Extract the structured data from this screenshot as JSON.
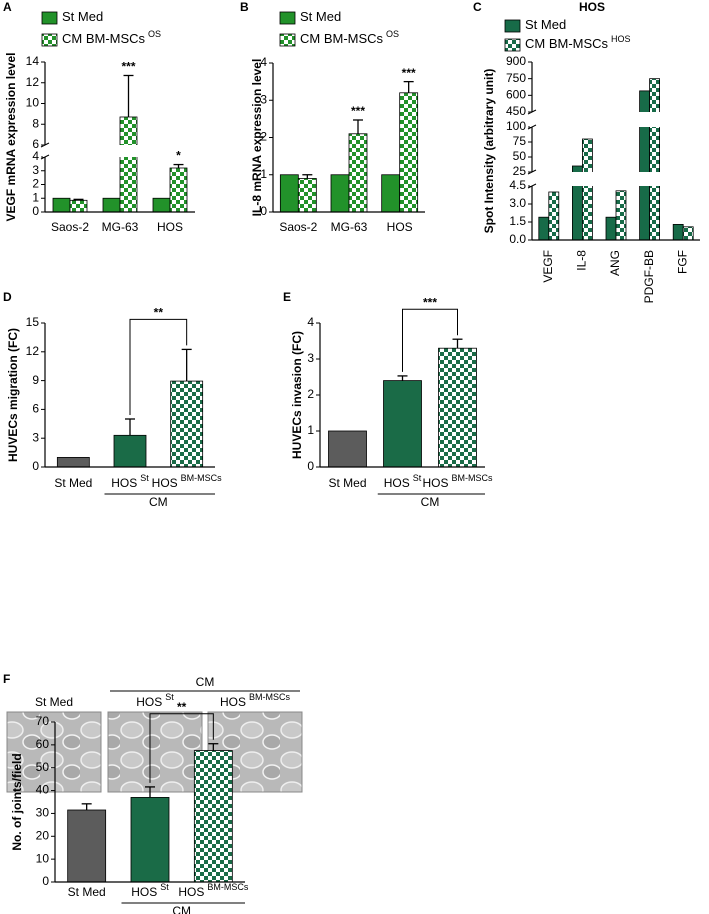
{
  "chart_data": [
    {
      "panel": "A",
      "type": "bar",
      "y_label": "VEGF mRNA expression level",
      "categories": [
        "Saos-2",
        "MG-63",
        "HOS"
      ],
      "series": [
        {
          "name": "St Med",
          "color": "#22922a",
          "pattern": "solid",
          "values": [
            1,
            1,
            1
          ],
          "errors": [
            0,
            0,
            0
          ]
        },
        {
          "name": "CM BM-MSCs",
          "name_sup": "OS",
          "color": "#22922a",
          "pattern": "checker",
          "values": [
            0.85,
            8.7,
            3.2
          ],
          "errors": [
            0.07,
            4.0,
            0.25
          ],
          "significance": [
            null,
            "***",
            "*"
          ]
        }
      ],
      "ylim": [
        0,
        14
      ],
      "y_breaks": [
        [
          4,
          6
        ]
      ],
      "yticks": [
        0,
        1,
        2,
        3,
        4,
        6,
        8,
        10,
        12,
        14
      ]
    },
    {
      "panel": "B",
      "type": "bar",
      "y_label": "IL-8 mRNA expression level",
      "categories": [
        "Saos-2",
        "MG-63",
        "HOS"
      ],
      "series": [
        {
          "name": "St Med",
          "color": "#22922a",
          "pattern": "solid",
          "values": [
            1,
            1,
            1
          ],
          "errors": [
            0,
            0,
            0
          ]
        },
        {
          "name": "CM BM-MSCs",
          "name_sup": "OS",
          "color": "#22922a",
          "pattern": "checker",
          "values": [
            0.9,
            2.1,
            3.2
          ],
          "errors": [
            0.1,
            0.37,
            0.3
          ],
          "significance": [
            null,
            "***",
            "***"
          ]
        }
      ],
      "ylim": [
        0,
        4
      ],
      "yticks": [
        0,
        1,
        2,
        3,
        4
      ]
    },
    {
      "panel": "C",
      "type": "bar",
      "title": "HOS",
      "y_label": "Spot Intensity (arbitrary unit)",
      "categories": [
        "VEGF",
        "IL-8",
        "ANG",
        "PDGF-BB",
        "FGF"
      ],
      "series": [
        {
          "name": "St Med",
          "color": "#176b48",
          "pattern": "solid",
          "values": [
            1.9,
            35,
            1.9,
            640,
            1.3
          ]
        },
        {
          "name": "CM BM-MSCs",
          "name_sup": "HOS",
          "color": "#176b48",
          "pattern": "checker",
          "values": [
            4.0,
            80,
            4.1,
            750,
            1.1
          ]
        }
      ],
      "ylim": [
        0,
        900
      ],
      "y_breaks": [
        [
          4.5,
          25
        ],
        [
          100,
          450
        ]
      ],
      "yticks": [
        {
          "value": 0,
          "label": "0.0"
        },
        1.5,
        {
          "value": 3,
          "label": "3.0"
        },
        4.5,
        25,
        50,
        75,
        100,
        450,
        600,
        750,
        900
      ]
    },
    {
      "panel": "D",
      "type": "bar",
      "y_label": "HUVECs migration (FC)",
      "categories": [
        "St Med",
        "HOS",
        "HOS"
      ],
      "category_sups": [
        null,
        "St",
        "BM-MSCs"
      ],
      "group_label": "CM",
      "values": [
        1,
        3.3,
        8.95
      ],
      "errors": [
        0,
        1.7,
        3.3
      ],
      "colors": [
        "#5c5c5c",
        "#1a6b47",
        "#1a6b47"
      ],
      "patterns": [
        "solid",
        "solid",
        "checker"
      ],
      "comparison": "**",
      "ylim": [
        0,
        15
      ],
      "yticks": [
        0,
        3,
        6,
        9,
        12,
        15
      ]
    },
    {
      "panel": "E",
      "type": "bar",
      "y_label": "HUVECs invasion (FC)",
      "categories": [
        "St Med",
        "HOS",
        "HOS"
      ],
      "category_sups": [
        null,
        "St",
        "BM-MSCs"
      ],
      "group_label": "CM",
      "values": [
        1,
        2.4,
        3.3
      ],
      "errors": [
        0,
        0.13,
        0.25
      ],
      "colors": [
        "#5c5c5c",
        "#1a6b47",
        "#1a6b47"
      ],
      "patterns": [
        "solid",
        "solid",
        "checker"
      ],
      "comparison": "***",
      "ylim": [
        0,
        4
      ],
      "yticks": [
        0,
        1,
        2,
        3,
        4
      ]
    },
    {
      "panel": "F",
      "type": "bar",
      "y_label": "No. of joints/field",
      "micrographs": {
        "labels": [
          "St Med",
          "HOS",
          "HOS"
        ],
        "label_sups": [
          null,
          "St",
          "BM-MSCs"
        ],
        "group_label": "CM"
      },
      "categories": [
        "St Med",
        "HOS",
        "HOS"
      ],
      "category_sups": [
        null,
        "St",
        "BM-MSCs"
      ],
      "group_label": "CM",
      "values": [
        31.5,
        37,
        57.5
      ],
      "errors": [
        2.7,
        4.6,
        3
      ],
      "colors": [
        "#5c5c5c",
        "#1a6b47",
        "#1a6b47"
      ],
      "patterns": [
        "solid",
        "solid",
        "checker"
      ],
      "comparison": "**",
      "ylim": [
        0,
        70
      ],
      "yticks": [
        0,
        10,
        20,
        30,
        40,
        50,
        60,
        70
      ]
    }
  ]
}
